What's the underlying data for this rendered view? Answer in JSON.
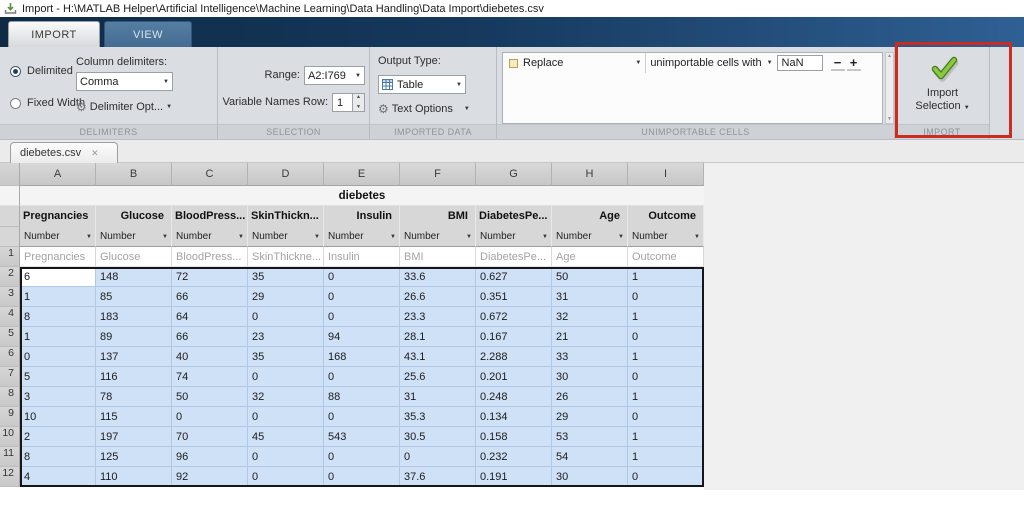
{
  "window": {
    "title": "Import - H:\\MATLAB Helper\\Artificial Intelligence\\Machine Learning\\Data Handling\\Data Import\\diebetes.csv"
  },
  "icons": {
    "dropdown": "▼",
    "up": "▲",
    "down": "▼",
    "gear": "⚙",
    "close": "✕"
  },
  "ribbon": {
    "tabs": [
      {
        "label": "IMPORT"
      },
      {
        "label": "VIEW"
      }
    ],
    "delimiters": {
      "section_label": "DELIMITERS",
      "radio_delimited": "Delimited",
      "radio_fixed_width": "Fixed Width",
      "column_delimiters_label": "Column delimiters:",
      "delimiter_value": "Comma",
      "delimiter_options_label": "Delimiter Opt..."
    },
    "selection": {
      "section_label": "SELECTION",
      "range_label": "Range:",
      "range_value": "A2:I769",
      "variable_names_label": "Variable Names Row:",
      "variable_names_value": "1"
    },
    "imported_data": {
      "section_label": "IMPORTED DATA",
      "output_type_label": "Output Type:",
      "output_type_value": "Table",
      "text_options_label": "Text Options"
    },
    "unimportable": {
      "section_label": "UNIMPORTABLE CELLS",
      "rule_value": "Replace",
      "rule_suffix": "unimportable cells with",
      "replace_value": "NaN",
      "minus_label": "−",
      "plus_label": "+"
    },
    "import": {
      "section_label": "IMPORT",
      "button_line1": "Import",
      "button_line2": "Selection"
    }
  },
  "doc_tab": {
    "label": "diebetes.csv"
  },
  "sheet": {
    "table_name": "diebetes",
    "column_letters": [
      "A",
      "B",
      "C",
      "D",
      "E",
      "F",
      "G",
      "H",
      "I"
    ],
    "variables": [
      {
        "name": "Pregnancies",
        "type": "Number"
      },
      {
        "name": "Glucose",
        "type": "Number"
      },
      {
        "name": "BloodPress...",
        "type": "Number"
      },
      {
        "name": "SkinThickn...",
        "type": "Number"
      },
      {
        "name": "Insulin",
        "type": "Number"
      },
      {
        "name": "BMI",
        "type": "Number"
      },
      {
        "name": "DiabetesPe...",
        "type": "Number"
      },
      {
        "name": "Age",
        "type": "Number"
      },
      {
        "name": "Outcome",
        "type": "Number"
      }
    ],
    "row1": {
      "num": "1",
      "cells": [
        "Pregnancies",
        "Glucose",
        "BloodPress...",
        "SkinThickne...",
        "Insulin",
        "BMI",
        "DiabetesPe...",
        "Age",
        "Outcome"
      ]
    },
    "rows": [
      {
        "num": "2",
        "cells": [
          "6",
          "148",
          "72",
          "35",
          "0",
          "33.6",
          "0.627",
          "50",
          "1"
        ]
      },
      {
        "num": "3",
        "cells": [
          "1",
          "85",
          "66",
          "29",
          "0",
          "26.6",
          "0.351",
          "31",
          "0"
        ]
      },
      {
        "num": "4",
        "cells": [
          "8",
          "183",
          "64",
          "0",
          "0",
          "23.3",
          "0.672",
          "32",
          "1"
        ]
      },
      {
        "num": "5",
        "cells": [
          "1",
          "89",
          "66",
          "23",
          "94",
          "28.1",
          "0.167",
          "21",
          "0"
        ]
      },
      {
        "num": "6",
        "cells": [
          "0",
          "137",
          "40",
          "35",
          "168",
          "43.1",
          "2.288",
          "33",
          "1"
        ]
      },
      {
        "num": "7",
        "cells": [
          "5",
          "116",
          "74",
          "0",
          "0",
          "25.6",
          "0.201",
          "30",
          "0"
        ]
      },
      {
        "num": "8",
        "cells": [
          "3",
          "78",
          "50",
          "32",
          "88",
          "31",
          "0.248",
          "26",
          "1"
        ]
      },
      {
        "num": "9",
        "cells": [
          "10",
          "115",
          "0",
          "0",
          "0",
          "35.3",
          "0.134",
          "29",
          "0"
        ]
      },
      {
        "num": "10",
        "cells": [
          "2",
          "197",
          "70",
          "45",
          "543",
          "30.5",
          "0.158",
          "53",
          "1"
        ]
      },
      {
        "num": "11",
        "cells": [
          "8",
          "125",
          "96",
          "0",
          "0",
          "0",
          "0.232",
          "54",
          "1"
        ]
      },
      {
        "num": "12",
        "cells": [
          "4",
          "110",
          "92",
          "0",
          "0",
          "37.6",
          "0.191",
          "30",
          "0"
        ]
      }
    ]
  }
}
